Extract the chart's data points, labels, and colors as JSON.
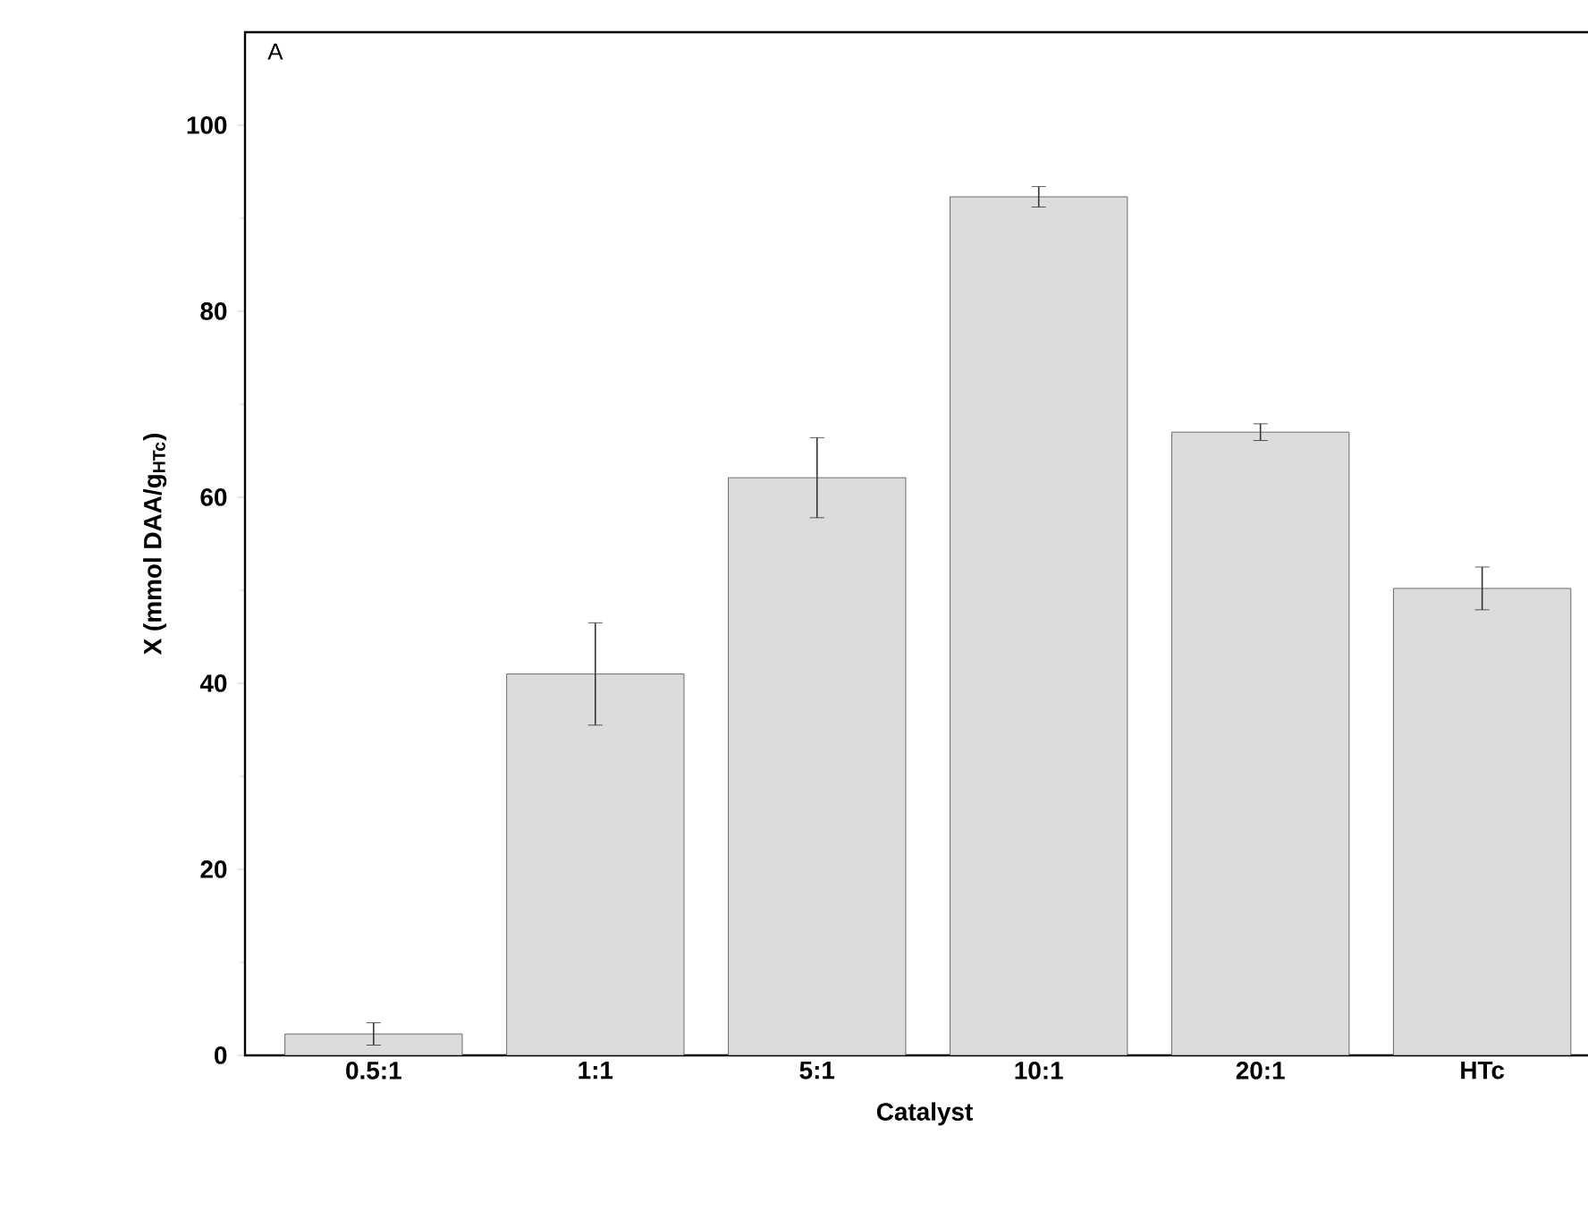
{
  "chart_data": {
    "type": "bar",
    "xlabel": "Catalyst",
    "ylabel": "X (mmol DAA/g$_{HTc}$)",
    "categories": [
      "0.5:1",
      "1:1",
      "5:1",
      "10:1",
      "20:1",
      "HTc"
    ],
    "values": [
      2.3,
      41.0,
      62.1,
      92.3,
      67.0,
      50.2
    ],
    "errors": [
      1.2,
      5.5,
      4.3,
      1.1,
      0.9,
      2.3
    ],
    "color": "#dcdcdc",
    "ylim": [
      0,
      110
    ],
    "yticks": [
      0,
      20,
      40,
      60,
      80,
      100
    ],
    "annotations": [
      "A"
    ]
  }
}
